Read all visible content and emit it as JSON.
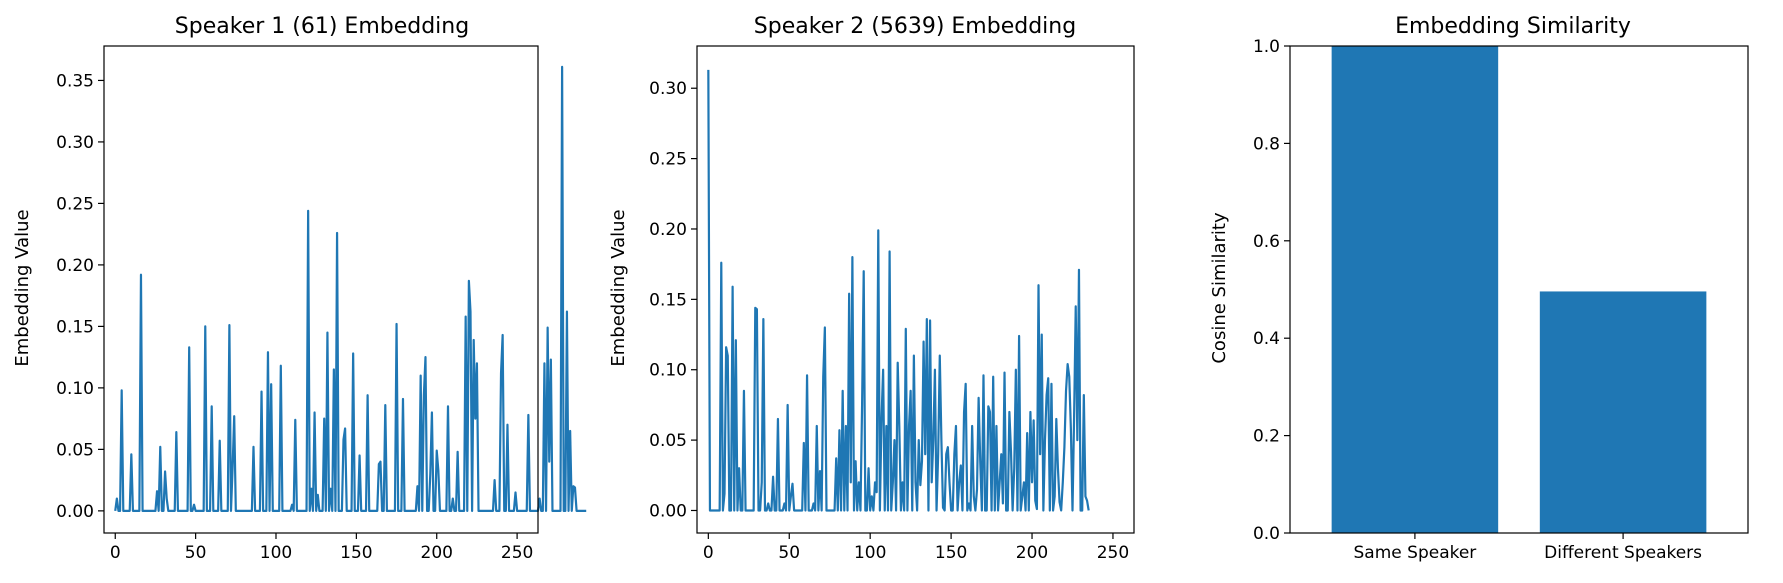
{
  "colors": {
    "series": "#1f77b4",
    "axes": "#000000",
    "background": "#ffffff"
  },
  "chart_data": [
    {
      "type": "line",
      "title": "Speaker 1 (61) Embedding",
      "xlabel": "",
      "ylabel": "Embedding Value",
      "xlim": [
        -7,
        263
      ],
      "ylim": [
        -0.018,
        0.378
      ],
      "xticks": [
        0,
        50,
        100,
        150,
        200,
        250
      ],
      "xtick_labels": [
        "0",
        "50",
        "100",
        "150",
        "200",
        "250"
      ],
      "yticks": [
        0,
        0.05,
        0.1,
        0.15,
        0.2,
        0.25,
        0.3,
        0.35
      ],
      "ytick_labels": [
        "0.00",
        "0.05",
        "0.10",
        "0.15",
        "0.20",
        "0.25",
        "0.30",
        "0.35"
      ],
      "grid": false,
      "series": [
        {
          "values": [
            0,
            0.01,
            0,
            0,
            0.098,
            0,
            0,
            0,
            0,
            0,
            0.046,
            0,
            0,
            0,
            0,
            0,
            0.192,
            0,
            0,
            0,
            0,
            0,
            0,
            0,
            0,
            0,
            0.016,
            0,
            0.052,
            0,
            0,
            0.032,
            0.01,
            0,
            0,
            0,
            0,
            0,
            0.064,
            0,
            0,
            0,
            0,
            0,
            0,
            0,
            0.133,
            0,
            0,
            0.005,
            0,
            0,
            0,
            0,
            0,
            0,
            0.15,
            0,
            0,
            0,
            0.085,
            0,
            0,
            0,
            0,
            0.057,
            0,
            0,
            0,
            0,
            0,
            0.151,
            0,
            0.035,
            0.077,
            0,
            0,
            0,
            0,
            0,
            0,
            0,
            0,
            0,
            0,
            0,
            0.052,
            0,
            0,
            0,
            0,
            0.097,
            0,
            0,
            0,
            0.129,
            0,
            0.103,
            0,
            0,
            0,
            0,
            0,
            0.118,
            0,
            0,
            0,
            0,
            0,
            0,
            0.005,
            0,
            0.074,
            0,
            0,
            0,
            0,
            0,
            0,
            0,
            0.244,
            0,
            0.018,
            0,
            0.08,
            0,
            0.013,
            0,
            0,
            0,
            0.075,
            0,
            0.145,
            0,
            0.018,
            0,
            0.115,
            0,
            0.226,
            0,
            0,
            0,
            0.058,
            0.067,
            0,
            0,
            0,
            0,
            0.128,
            0,
            0,
            0,
            0.045,
            0,
            0,
            0,
            0,
            0.094,
            0,
            0,
            0,
            0,
            0,
            0,
            0.038,
            0.04,
            0,
            0,
            0.086,
            0,
            0,
            0,
            0,
            0,
            0,
            0.152,
            0,
            0,
            0,
            0.091,
            0,
            0,
            0,
            0,
            0,
            0,
            0,
            0,
            0.02,
            0,
            0.11,
            0,
            0.094,
            0.125,
            0,
            0,
            0.03,
            0.08,
            0,
            0,
            0.049,
            0.033,
            0,
            0,
            0,
            0,
            0,
            0.085,
            0,
            0,
            0.01,
            0,
            0,
            0.048,
            0,
            0,
            0,
            0,
            0.158,
            0,
            0.187,
            0.162,
            0,
            0.139,
            0.075,
            0.12,
            0,
            0,
            0,
            0,
            0,
            0,
            0,
            0,
            0,
            0,
            0.025,
            0,
            0,
            0,
            0.112,
            0.143,
            0,
            0,
            0.07,
            0,
            0,
            0,
            0,
            0.015,
            0,
            0,
            0,
            0,
            0,
            0,
            0,
            0.078,
            0,
            0,
            0,
            0,
            0,
            0,
            0.01,
            0,
            0,
            0.12,
            0,
            0.149,
            0.04,
            0.123,
            0,
            0,
            0,
            0,
            0,
            0,
            0.361,
            0,
            0,
            0.162,
            0,
            0.065,
            0,
            0.02,
            0.019,
            0,
            0,
            0,
            0,
            0,
            0,
            0
          ],
          "note_x": "x = index 0..N-1"
        }
      ]
    },
    {
      "type": "line",
      "title": "Speaker 2 (5639) Embedding",
      "xlabel": "",
      "ylabel": "Embedding Value",
      "xlim": [
        -7,
        263
      ],
      "ylim": [
        -0.016,
        0.33
      ],
      "xticks": [
        0,
        50,
        100,
        150,
        200,
        250
      ],
      "xtick_labels": [
        "0",
        "50",
        "100",
        "150",
        "200",
        "250"
      ],
      "yticks": [
        0,
        0.05,
        0.1,
        0.15,
        0.2,
        0.25,
        0.3
      ],
      "ytick_labels": [
        "0.00",
        "0.05",
        "0.10",
        "0.15",
        "0.20",
        "0.25",
        "0.30"
      ],
      "grid": false,
      "series": [
        {
          "values": [
            0.313,
            0,
            0,
            0,
            0,
            0,
            0,
            0,
            0.176,
            0,
            0.012,
            0.116,
            0.11,
            0,
            0,
            0.159,
            0,
            0.121,
            0,
            0.03,
            0,
            0,
            0.085,
            0,
            0,
            0,
            0,
            0,
            0,
            0.144,
            0.143,
            0,
            0,
            0.02,
            0.136,
            0,
            0,
            0.005,
            0,
            0,
            0.024,
            0,
            0,
            0.065,
            0,
            0,
            0,
            0.005,
            0,
            0.075,
            0,
            0.01,
            0.019,
            0,
            0,
            0,
            0,
            0,
            0,
            0.048,
            0,
            0.096,
            0,
            0,
            0,
            0.005,
            0,
            0.06,
            0,
            0.028,
            0,
            0.095,
            0.13,
            0,
            0,
            0,
            0,
            0,
            0,
            0.037,
            0,
            0.057,
            0,
            0.085,
            0,
            0.06,
            0,
            0.154,
            0.02,
            0.18,
            0,
            0.035,
            0,
            0.02,
            0,
            0.075,
            0.17,
            0,
            0,
            0.03,
            0,
            0.01,
            0,
            0.02,
            0.013,
            0.199,
            0,
            0.065,
            0.1,
            0,
            0.06,
            0,
            0.184,
            0,
            0.02,
            0.05,
            0,
            0.105,
            0.06,
            0,
            0.02,
            0,
            0.129,
            0,
            0.06,
            0.085,
            0,
            0.11,
            0.02,
            0,
            0.05,
            0.018,
            0.035,
            0.12,
            0.04,
            0.136,
            0,
            0.135,
            0.02,
            0.05,
            0.1,
            0,
            0.04,
            0.11,
            0.05,
            0.002,
            0,
            0.04,
            0.045,
            0.02,
            0,
            0,
            0.04,
            0.06,
            0,
            0.02,
            0.032,
            0,
            0.07,
            0.09,
            0,
            0.005,
            0,
            0.06,
            0.01,
            0,
            0.015,
            0.08,
            0.035,
            0,
            0.096,
            0,
            0,
            0.074,
            0.07,
            0,
            0.095,
            0,
            0.06,
            0,
            0.02,
            0.04,
            0.005,
            0.098,
            0,
            0,
            0.07,
            0.042,
            0,
            0.03,
            0.1,
            0,
            0.124,
            0,
            0.01,
            0.02,
            0,
            0.055,
            0,
            0.07,
            0.02,
            0.064,
            0.007,
            0.001,
            0.16,
            0.04,
            0.125,
            0,
            0.05,
            0.082,
            0.094,
            0,
            0.09,
            0,
            0.01,
            0.065,
            0.03,
            0.006,
            0,
            0.02,
            0.045,
            0.085,
            0.104,
            0.095,
            0.058,
            0,
            0.067,
            0.145,
            0.05,
            0.171,
            0,
            0,
            0.082,
            0.01,
            0.007,
            0
          ],
          "note_x": "x = index 0..N-1"
        }
      ]
    },
    {
      "type": "bar",
      "title": "Embedding Similarity",
      "xlabel": "",
      "ylabel": "Cosine Similarity",
      "categories": [
        "Same Speaker",
        "Different Speakers"
      ],
      "values": [
        1.0,
        0.496
      ],
      "ylim": [
        0,
        1.0
      ],
      "yticks": [
        0,
        0.2,
        0.4,
        0.6,
        0.8,
        1.0
      ],
      "ytick_labels": [
        "0.0",
        "0.2",
        "0.4",
        "0.6",
        "0.8",
        "1.0"
      ],
      "grid": false
    }
  ]
}
